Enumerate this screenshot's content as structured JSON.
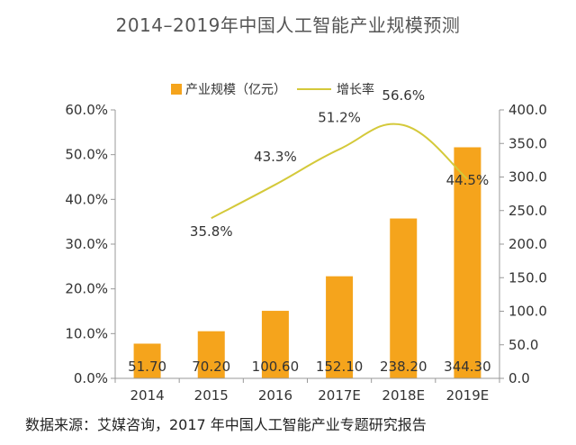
{
  "chart_data": {
    "type": "bar",
    "title": "2014–2019年中国人工智能产业规模预测",
    "categories": [
      "2014",
      "2015",
      "2016",
      "2017E",
      "2018E",
      "2019E"
    ],
    "series": [
      {
        "name": "产业规模（亿元）",
        "type": "bar",
        "axis": "right",
        "values": [
          51.7,
          70.2,
          100.6,
          152.1,
          238.2,
          344.3
        ],
        "labels": [
          "51.70",
          "70.20",
          "100.60",
          "152.10",
          "238.20",
          "344.30"
        ]
      },
      {
        "name": "增长率",
        "type": "line",
        "axis": "left",
        "values": [
          null,
          35.8,
          43.3,
          51.2,
          56.6,
          44.5
        ],
        "labels": [
          "",
          "35.8%",
          "43.3%",
          "51.2%",
          "56.6%",
          "44.5%"
        ]
      }
    ],
    "y_left": {
      "ylim": [
        0,
        60
      ],
      "ticks": [
        "0.0%",
        "10.0%",
        "20.0%",
        "30.0%",
        "40.0%",
        "50.0%",
        "60.0%"
      ]
    },
    "y_right": {
      "ylim": [
        0,
        400
      ],
      "ticks": [
        "0.0",
        "50.0",
        "100.0",
        "150.0",
        "200.0",
        "250.0",
        "300.0",
        "350.0",
        "400.0"
      ]
    },
    "legend": [
      "产业规模（亿元）",
      "增长率"
    ],
    "legend_position": "top-center",
    "colors": {
      "bar": "#F5A41C",
      "line": "#D4C93A",
      "axis": "#999999"
    }
  },
  "source": "数据来源：艾媒咨询，2017 年中国人工智能产业专题研究报告"
}
